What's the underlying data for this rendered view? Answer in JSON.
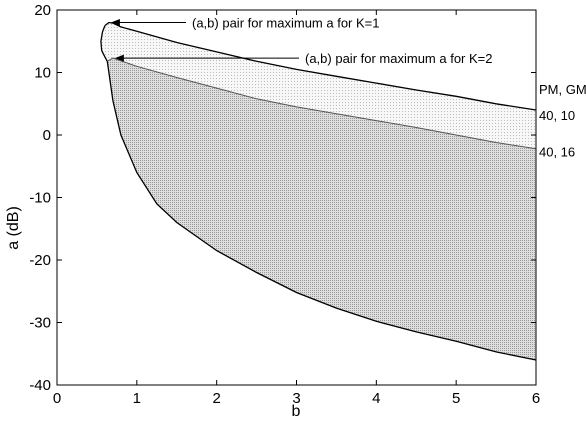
{
  "chart_data": {
    "type": "area",
    "title": "",
    "xlabel": "b",
    "ylabel": "a (dB)",
    "xlim": [
      0,
      6
    ],
    "ylim": [
      -40,
      20
    ],
    "xticks": [
      "0",
      "1",
      "2",
      "3",
      "4",
      "5",
      "6"
    ],
    "yticks": [
      "20",
      "10",
      "0",
      "-10",
      "-20",
      "-30",
      "-40"
    ],
    "grid": false,
    "curves": {
      "k1_upper": {
        "x": [
          0.6,
          0.65,
          0.7,
          0.8,
          1.0,
          1.5,
          2.0,
          2.5,
          3.0,
          3.5,
          4.0,
          4.5,
          5.0,
          5.5,
          6.0
        ],
        "y": [
          17.5,
          18.0,
          17.9,
          17.3,
          16.6,
          14.8,
          13.3,
          11.8,
          10.5,
          9.4,
          8.3,
          7.2,
          6.2,
          5.0,
          4.0
        ]
      },
      "k1_lower_front": {
        "x": [
          0.6,
          0.57,
          0.55,
          0.56,
          0.6,
          0.63
        ],
        "y": [
          17.5,
          16.5,
          15.0,
          13.5,
          12.5,
          11.8
        ]
      },
      "k2_upper": {
        "x": [
          0.63,
          0.7,
          1.0,
          1.5,
          2.0,
          2.5,
          3.0,
          3.5,
          4.0,
          4.5,
          5.0,
          5.5,
          6.0
        ],
        "y": [
          11.8,
          12.3,
          11.0,
          9.2,
          7.5,
          5.8,
          4.5,
          3.4,
          2.3,
          1.2,
          0.0,
          -1.2,
          -2.2
        ]
      },
      "k2_lower": {
        "x": [
          0.63,
          0.7,
          0.8,
          1.0,
          1.25,
          1.5,
          2.0,
          2.5,
          3.0,
          3.5,
          4.0,
          4.5,
          5.0,
          5.5,
          6.0
        ],
        "y": [
          11.8,
          5.5,
          0.0,
          -6.0,
          -11.0,
          -14.0,
          -18.5,
          -22.0,
          -25.2,
          -27.7,
          -29.8,
          -31.5,
          -33.0,
          -34.7,
          -36.0
        ]
      }
    },
    "annotations": [
      {
        "text": "(a,b) pair for maximum a for K=1",
        "x": 0.65,
        "y": 18.0
      },
      {
        "text": "(a,b) pair for maximum a for K=2",
        "x": 0.7,
        "y": 12.3
      }
    ],
    "right_labels": [
      {
        "text": "PM, GM",
        "y": 7.4
      },
      {
        "text": "40, 10",
        "y": 3.2
      },
      {
        "text": "40, 16",
        "y": -2.6
      }
    ],
    "colors": {
      "light_region": "#f1f1f1",
      "dark_region": "#d0d0d0",
      "line": "#000000"
    }
  }
}
